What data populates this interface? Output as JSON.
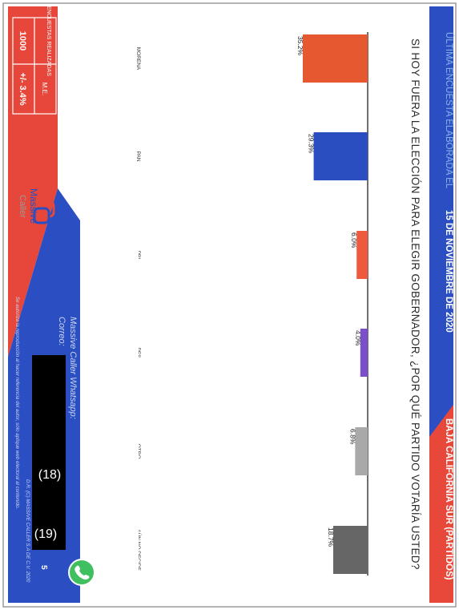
{
  "header": {
    "survey_prefix": "ÚLTIMA ENCUESTA ELABORADA EL",
    "survey_date": "15 DE NOVIEMBRE DE 2020",
    "region": "BAJA CALIFORNIA SUR (PARTIDOS)"
  },
  "question": "SI HOY FUERA LA ELECCIÓN PARA ELEGIR GOBERNADOR, ¿POR QUÉ PARTIDO VOTARÍA USTED?",
  "stats": {
    "label_1": "ENCUESTAS REALIZADAS",
    "label_2": "M.E.",
    "value_1": "1000",
    "value_2": "+/- 3.4%"
  },
  "brand": {
    "name_1": "Massive",
    "name_2": "Caller"
  },
  "footer": {
    "whatsapp": "Massive Caller Whatsapp:",
    "email": "Correo:",
    "notice": "Se autoriza la reproducción al hacer referencia del autor, sólo aplique web electoral al contenido.",
    "copyright": "D.R. (C) MASSIVE CALLER S.A DE C.V. 2020",
    "page": "5",
    "redaction_1": "(18)",
    "redaction_2": "(19)"
  },
  "colors": {
    "blue": "#2b4fc2",
    "red": "#e65434",
    "banner_red": "#e8483a",
    "morena": "#e6582f",
    "pan": "#2a4ec0",
    "pri": "#ef5a3c",
    "pes": "#7b4fc9",
    "otro": "#a9a9a9",
    "no_decide": "#666666",
    "whatsapp": "#3fbf5f"
  },
  "icons": [
    "massive-caller-logo-icon",
    "whatsapp-phone-icon"
  ],
  "chart_data": {
    "type": "bar",
    "categories": [
      "MORENA",
      "PAN",
      "PRI",
      "PES",
      "OTRO",
      "AÚN NO DECIDE"
    ],
    "values": [
      35.2,
      29.3,
      6.0,
      4.0,
      6.8,
      18.7
    ],
    "data_labels": [
      "35.2%",
      "29.3%",
      "6.0%",
      "4.0%",
      "6.8%",
      "18.7%"
    ],
    "colors": [
      "#e6582f",
      "#2a4ec0",
      "#ef5a3c",
      "#7b4fc9",
      "#a9a9a9",
      "#666666"
    ],
    "title": "SI HOY FUERA LA ELECCIÓN PARA ELEGIR GOBERNADOR, ¿POR QUÉ PARTIDO VOTARÍA USTED?",
    "ylim": [
      0,
      40
    ],
    "grid": false,
    "legend": "none"
  }
}
